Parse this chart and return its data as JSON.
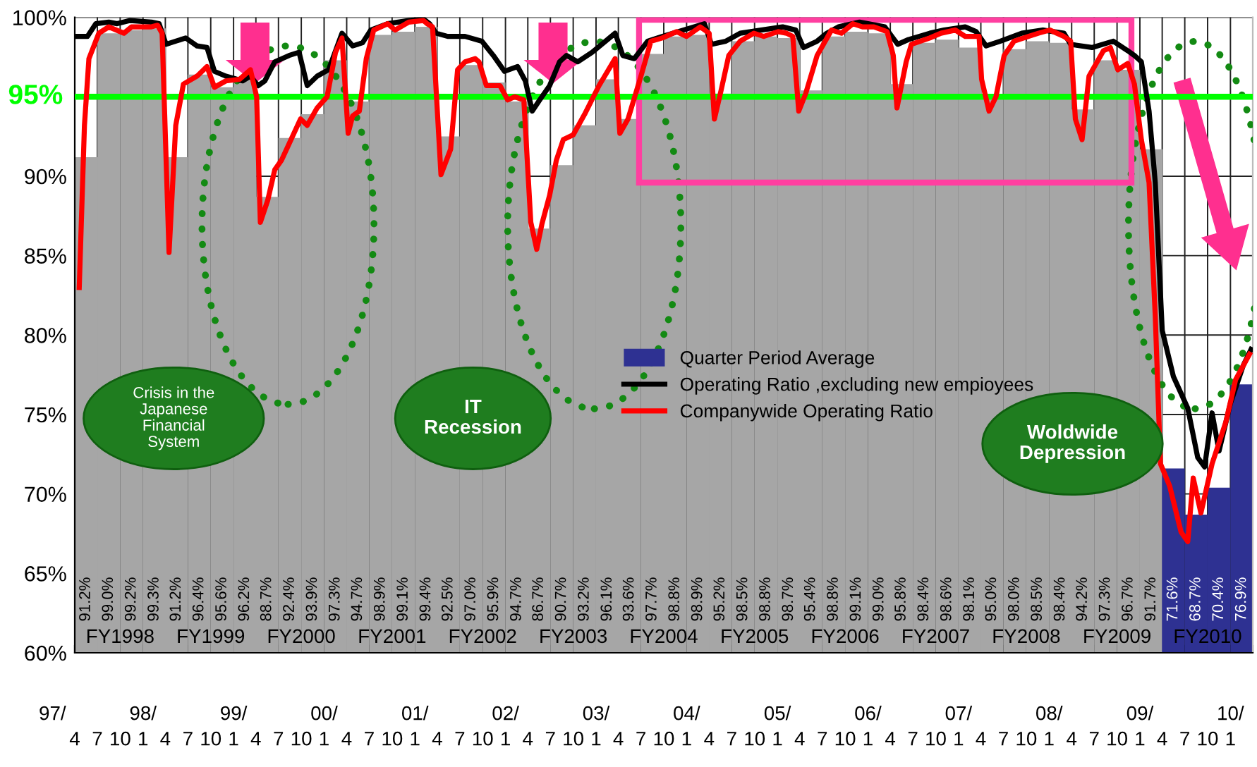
{
  "chart_data": {
    "type": "bar",
    "xlim": [
      "1997-04",
      "2010-04"
    ],
    "ylim": [
      60,
      100
    ],
    "grid": true,
    "legend": "center",
    "xticks": [
      {
        "value": "1997-04",
        "label": "4"
      },
      {
        "value": "1997-07",
        "label": "7"
      },
      {
        "value": "1997-10",
        "label": "10"
      },
      {
        "value": "1998-01",
        "label": "1"
      },
      {
        "value": "1998-04",
        "label": "4"
      },
      {
        "value": "1998-07",
        "label": "7"
      },
      {
        "value": "1998-10",
        "label": "10"
      },
      {
        "value": "1999-01",
        "label": "1"
      },
      {
        "value": "1999-04",
        "label": "4"
      },
      {
        "value": "1999-07",
        "label": "7"
      },
      {
        "value": "1999-10",
        "label": "10"
      },
      {
        "value": "2000-01",
        "label": "1"
      },
      {
        "value": "2000-04",
        "label": "4"
      },
      {
        "value": "2000-07",
        "label": "7"
      },
      {
        "value": "2000-10",
        "label": "10"
      },
      {
        "value": "2001-01",
        "label": "1"
      },
      {
        "value": "2001-04",
        "label": "4"
      },
      {
        "value": "2001-07",
        "label": "7"
      },
      {
        "value": "2001-10",
        "label": "10"
      },
      {
        "value": "2002-01",
        "label": "1"
      },
      {
        "value": "2002-04",
        "label": "4"
      },
      {
        "value": "2002-07",
        "label": "7"
      },
      {
        "value": "2002-10",
        "label": "10"
      },
      {
        "value": "2003-01",
        "label": "1"
      },
      {
        "value": "2003-04",
        "label": "4"
      },
      {
        "value": "2003-07",
        "label": "7"
      },
      {
        "value": "2003-10",
        "label": "10"
      },
      {
        "value": "2004-01",
        "label": "1"
      },
      {
        "value": "2004-04",
        "label": "4"
      },
      {
        "value": "2004-07",
        "label": "7"
      },
      {
        "value": "2004-10",
        "label": "10"
      },
      {
        "value": "2005-01",
        "label": "1"
      },
      {
        "value": "2005-04",
        "label": "4"
      },
      {
        "value": "2005-07",
        "label": "7"
      },
      {
        "value": "2005-10",
        "label": "10"
      },
      {
        "value": "2006-01",
        "label": "1"
      },
      {
        "value": "2006-04",
        "label": "4"
      },
      {
        "value": "2006-07",
        "label": "7"
      },
      {
        "value": "2006-10",
        "label": "10"
      },
      {
        "value": "2007-01",
        "label": "1"
      },
      {
        "value": "2007-04",
        "label": "4"
      },
      {
        "value": "2007-07",
        "label": "7"
      },
      {
        "value": "2007-10",
        "label": "10"
      },
      {
        "value": "2008-01",
        "label": "1"
      },
      {
        "value": "2008-04",
        "label": "4"
      },
      {
        "value": "2008-07",
        "label": "7"
      },
      {
        "value": "2008-10",
        "label": "10"
      },
      {
        "value": "2009-01",
        "label": "1"
      },
      {
        "value": "2009-04",
        "label": "4"
      },
      {
        "value": "2009-07",
        "label": "7"
      },
      {
        "value": "2009-10",
        "label": "10"
      },
      {
        "value": "2010-01",
        "label": "1"
      },
      {
        "value": "2010-04",
        "label": null
      }
    ],
    "x2lim": [
      "1997-01",
      "2010-04"
    ],
    "x2ticks": [
      {
        "value": "1997-01",
        "label": "97/"
      },
      {
        "value": "1998-01",
        "label": "98/"
      },
      {
        "value": "1999-01",
        "label": "99/"
      },
      {
        "value": "2000-01",
        "label": "00/"
      },
      {
        "value": "2001-01",
        "label": "01/"
      },
      {
        "value": "2002-01",
        "label": "02/"
      },
      {
        "value": "2003-01",
        "label": "03/"
      },
      {
        "value": "2004-01",
        "label": "04/"
      },
      {
        "value": "2005-01",
        "label": "05/"
      },
      {
        "value": "2006-01",
        "label": "06/"
      },
      {
        "value": "2007-01",
        "label": "07/"
      },
      {
        "value": "2008-01",
        "label": "08/"
      },
      {
        "value": "2009-01",
        "label": "09/"
      },
      {
        "value": "2010-01",
        "label": "10/"
      }
    ],
    "yticks": [
      {
        "value": 60,
        "label": "60%"
      },
      {
        "value": 65,
        "label": "65%"
      },
      {
        "value": 70,
        "label": "70%"
      },
      {
        "value": 75,
        "label": "75%"
      },
      {
        "value": 80,
        "label": "80%"
      },
      {
        "value": 85,
        "label": "85%"
      },
      {
        "value": 90,
        "label": "90%"
      },
      {
        "value": 100,
        "label": "100%"
      }
    ],
    "ref_lines": [
      {
        "axis": "y",
        "value": 95,
        "label": "95%",
        "color": "#00ff00"
      }
    ],
    "annotations": [
      "Crisis in the\nJapanese\nFinancial\nSystem",
      "IT\nRecession",
      "Woldwide\nDepression",
      {
        "text": "FY1998",
        "x": "1997-10"
      },
      {
        "text": "FY1999",
        "x": "1998-10"
      },
      {
        "text": "FY2000",
        "x": "1999-10"
      },
      {
        "text": "FY2001",
        "x": "2000-10"
      },
      {
        "text": "FY2002",
        "x": "2001-10"
      },
      {
        "text": "FY2003",
        "x": "2002-10"
      },
      {
        "text": "FY2004",
        "x": "2003-10"
      },
      {
        "text": "FY2005",
        "x": "2004-10"
      },
      {
        "text": "FY2006",
        "x": "2005-10"
      },
      {
        "text": "FY2007",
        "x": "2006-10"
      },
      {
        "text": "FY2008",
        "x": "2007-10"
      },
      {
        "text": "FY2009",
        "x": "2008-10"
      },
      {
        "text": "FY2010",
        "x": "2009-10"
      }
    ],
    "series": [
      {
        "name": "Quarter Period Average",
        "color": "#2e3192",
        "x": [
          "1997-05-16",
          "1997-08-16",
          "1997-11-16",
          "1998-02-16",
          "1998-05-16",
          "1998-08-16",
          "1998-11-16",
          "1999-02-16",
          "1999-05-16",
          "1999-08-16",
          "1999-11-16",
          "2000-02-16",
          "2000-05-16",
          "2000-08-16",
          "2000-11-16",
          "2001-02-16",
          "2001-05-16",
          "2001-08-16",
          "2001-11-16",
          "2002-02-16",
          "2002-05-16",
          "2002-08-16",
          "2002-11-16",
          "2003-02-16",
          "2003-05-16",
          "2003-08-16",
          "2003-11-16",
          "2004-02-16",
          "2004-05-16",
          "2004-08-16",
          "2004-11-16",
          "2005-02-16",
          "2005-05-16",
          "2005-08-16",
          "2005-11-16",
          "2006-02-16",
          "2006-05-16",
          "2006-08-16",
          "2006-11-16",
          "2007-02-16",
          "2007-05-16",
          "2007-08-16",
          "2007-11-16",
          "2008-02-16",
          "2008-05-16",
          "2008-08-16",
          "2008-11-16",
          "2009-02-16",
          "2009-05-16",
          "2009-08-16",
          "2009-11-16",
          "2010-02-16"
        ],
        "values": [
          91.2,
          99.0,
          99.2,
          99.3,
          91.2,
          96.4,
          95.6,
          96.2,
          88.7,
          92.4,
          93.9,
          97.3,
          94.7,
          98.9,
          99.1,
          99.4,
          92.5,
          97.0,
          95.9,
          94.7,
          86.7,
          90.7,
          93.2,
          96.1,
          93.6,
          97.7,
          98.8,
          98.9,
          95.2,
          98.5,
          98.8,
          98.7,
          95.4,
          98.8,
          99.1,
          99.0,
          95.8,
          98.4,
          98.6,
          98.1,
          95.0,
          98.0,
          98.5,
          98.4,
          94.2,
          97.3,
          96.7,
          91.7,
          71.6,
          68.7,
          70.4,
          76.9
        ],
        "value_labels": [
          "91.2%",
          "99.0%",
          "99.2%",
          "99.3%",
          "91.2%",
          "96.4%",
          "95.6%",
          "96.2%",
          "88.7%",
          "92.4%",
          "93.9%",
          "97.3%",
          "94.7%",
          "98.9%",
          "99.1%",
          "99.4%",
          "92.5%",
          "97.0%",
          "95.9%",
          "94.7%",
          "86.7%",
          "90.7%",
          "93.2%",
          "96.1%",
          "93.6%",
          "97.7%",
          "98.8%",
          "98.9%",
          "95.2%",
          "98.5%",
          "98.8%",
          "98.7%",
          "95.4%",
          "98.8%",
          "99.1%",
          "99.0%",
          "95.8%",
          "98.4%",
          "98.6%",
          "98.1%",
          "95.0%",
          "98.0%",
          "98.5%",
          "98.4%",
          "94.2%",
          "97.3%",
          "96.7%",
          "91.7%",
          "71.6%",
          "68.7%",
          "70.4%",
          "76.9%"
        ],
        "colors": [
          "#a6a6a6",
          "#a6a6a6",
          "#a6a6a6",
          "#a6a6a6",
          "#a6a6a6",
          "#a6a6a6",
          "#a6a6a6",
          "#a6a6a6",
          "#a6a6a6",
          "#a6a6a6",
          "#a6a6a6",
          "#a6a6a6",
          "#a6a6a6",
          "#a6a6a6",
          "#a6a6a6",
          "#a6a6a6",
          "#a6a6a6",
          "#a6a6a6",
          "#a6a6a6",
          "#a6a6a6",
          "#a6a6a6",
          "#a6a6a6",
          "#a6a6a6",
          "#a6a6a6",
          "#a6a6a6",
          "#a6a6a6",
          "#a6a6a6",
          "#a6a6a6",
          "#a6a6a6",
          "#a6a6a6",
          "#a6a6a6",
          "#a6a6a6",
          "#a6a6a6",
          "#a6a6a6",
          "#a6a6a6",
          "#a6a6a6",
          "#a6a6a6",
          "#a6a6a6",
          "#a6a6a6",
          "#a6a6a6",
          "#a6a6a6",
          "#a6a6a6",
          "#a6a6a6",
          "#a6a6a6",
          "#a6a6a6",
          "#a6a6a6",
          "#a6a6a6",
          "#a6a6a6",
          "#2e3192",
          "#2e3192",
          "#2e3192",
          "#2e3192"
        ]
      },
      {
        "type": "line",
        "name": "Operating Ratio ,excluding new empioyees",
        "color": "#000000",
        "x": [
          "1997-04-13",
          "1997-05-22",
          "1997-06-25",
          "1997-08-16",
          "1997-09-19",
          "1997-11-10",
          "1998-02-04",
          "1998-03-07",
          "1998-04-04",
          "1998-05-13",
          "1998-06-22",
          "1998-08-07",
          "1998-09-16",
          "1998-10-16",
          "1998-12-01",
          "1999-02-07",
          "1999-03-10",
          "1999-04-10",
          "1999-05-07",
          "1999-06-16",
          "1999-08-13",
          "1999-09-22",
          "1999-10-25",
          "1999-12-04",
          "2000-01-19",
          "2000-03-13",
          "2000-04-25",
          "2000-06-04",
          "2000-07-07",
          "2000-09-13",
          "2000-12-07",
          "2001-02-04",
          "2001-03-01",
          "2001-03-28",
          "2001-05-13",
          "2001-07-22",
          "2001-09-28",
          "2001-11-13",
          "2001-12-28",
          "2002-02-19",
          "2002-03-22",
          "2002-04-19",
          "2002-05-19",
          "2002-06-28",
          "2002-08-07",
          "2002-09-04",
          "2002-10-19",
          "2002-12-16",
          "2003-03-19",
          "2003-04-19",
          "2003-06-04",
          "2003-07-28",
          "2003-09-25",
          "2003-12-19",
          "2004-03-13",
          "2004-04-10",
          "2004-06-07",
          "2004-08-04",
          "2004-10-28",
          "2005-01-22",
          "2005-03-16",
          "2005-04-16",
          "2005-06-10",
          "2005-07-19",
          "2005-09-04",
          "2005-11-28",
          "2006-03-10",
          "2006-05-01",
          "2006-06-13",
          "2006-09-07",
          "2006-11-04",
          "2007-01-28",
          "2007-03-13",
          "2007-04-22",
          "2007-06-19",
          "2007-09-13",
          "2007-12-07",
          "2008-03-01",
          "2008-03-28",
          "2008-06-22",
          "2008-09-16",
          "2008-11-13",
          "2008-12-10",
          "2009-01-07",
          "2009-02-07",
          "2009-03-04",
          "2009-04-01",
          "2009-05-16",
          "2009-07-13",
          "2009-08-22",
          "2009-09-19",
          "2009-10-19",
          "2009-11-16",
          "2010-01-01",
          "2010-02-22",
          "2010-03-25"
        ],
        "values": [
          98.8,
          98.8,
          99.6,
          99.7,
          99.6,
          99.8,
          99.7,
          99.6,
          98.3,
          98.5,
          98.7,
          98.2,
          98.1,
          96.6,
          96.3,
          96.0,
          96.3,
          95.7,
          96.0,
          97.2,
          97.6,
          97.8,
          95.7,
          96.3,
          96.7,
          99.0,
          98.2,
          98.4,
          99.2,
          99.6,
          99.8,
          99.9,
          99.6,
          99.0,
          98.8,
          98.8,
          98.5,
          97.6,
          96.6,
          96.9,
          96.0,
          94.1,
          94.8,
          95.7,
          97.2,
          97.6,
          97.2,
          97.8,
          99.0,
          97.6,
          97.4,
          98.5,
          98.8,
          99.2,
          99.6,
          98.3,
          98.5,
          99.0,
          99.2,
          99.4,
          99.2,
          98.1,
          98.5,
          99.0,
          99.4,
          99.7,
          99.4,
          98.3,
          98.6,
          99.0,
          99.2,
          99.4,
          99.1,
          98.2,
          98.5,
          99.0,
          99.2,
          99.0,
          98.3,
          98.1,
          98.5,
          97.9,
          97.6,
          97.2,
          94.1,
          89.6,
          80.3,
          77.4,
          75.4,
          72.3,
          71.7,
          75.1,
          72.7,
          75.7,
          78.1,
          79.1
        ]
      },
      {
        "type": "line",
        "name": "Companywide Operating Ratio",
        "color": "#ff0000",
        "x": [
          "1997-04-19",
          "1997-05-10",
          "1997-05-28",
          "1997-07-07",
          "1997-08-16",
          "1997-10-16",
          "1997-11-16",
          "1998-02-04",
          "1998-03-01",
          "1998-03-19",
          "1998-04-16",
          "1998-05-13",
          "1998-06-13",
          "1998-08-07",
          "1998-09-16",
          "1998-10-16",
          "1998-12-01",
          "1999-01-25",
          "1999-03-10",
          "1999-04-04",
          "1999-04-19",
          "1999-05-19",
          "1999-06-16",
          "1999-07-13",
          "1999-09-28",
          "1999-10-25",
          "1999-12-04",
          "2000-01-13",
          "2000-02-16",
          "2000-03-13",
          "2000-04-07",
          "2000-04-25",
          "2000-05-22",
          "2000-06-19",
          "2000-07-19",
          "2000-09-13",
          "2000-10-13",
          "2000-12-07",
          "2001-02-04",
          "2001-02-19",
          "2001-03-13",
          "2001-04-16",
          "2001-05-25",
          "2001-06-22",
          "2001-07-22",
          "2001-09-01",
          "2001-09-16",
          "2001-10-16",
          "2001-12-10",
          "2002-01-10",
          "2002-02-07",
          "2002-03-16",
          "2002-04-13",
          "2002-05-07",
          "2002-05-28",
          "2002-06-28",
          "2002-07-25",
          "2002-08-22",
          "2002-10-01",
          "2002-11-16",
          "2003-01-13",
          "2003-03-19",
          "2003-04-07",
          "2003-05-10",
          "2003-07-01",
          "2003-08-10",
          "2003-09-25",
          "2003-11-22",
          "2004-01-01",
          "2004-02-25",
          "2004-04-01",
          "2004-04-22",
          "2004-05-19",
          "2004-06-19",
          "2004-08-04",
          "2004-09-28",
          "2004-11-07",
          "2005-01-04",
          "2005-02-07",
          "2005-03-04",
          "2005-03-28",
          "2005-04-25",
          "2005-06-10",
          "2005-08-07",
          "2005-09-16",
          "2005-11-01",
          "2005-12-10",
          "2006-01-25",
          "2006-03-19",
          "2006-04-13",
          "2006-04-28",
          "2006-06-04",
          "2006-06-25",
          "2006-09-07",
          "2006-10-22",
          "2006-12-19",
          "2007-01-28",
          "2007-03-25",
          "2007-04-04",
          "2007-05-04",
          "2007-06-01",
          "2007-07-04",
          "2007-08-13",
          "2007-10-10",
          "2007-11-19",
          "2008-01-04",
          "2008-03-01",
          "2008-03-28",
          "2008-04-16",
          "2008-05-13",
          "2008-06-10",
          "2008-08-07",
          "2008-09-04",
          "2008-10-04",
          "2008-11-13",
          "2008-12-10",
          "2009-01-07",
          "2009-02-07",
          "2009-03-04",
          "2009-03-25",
          "2009-05-01",
          "2009-06-16",
          "2009-07-13",
          "2009-08-04",
          "2009-09-04",
          "2009-10-19",
          "2009-12-13",
          "2010-01-22",
          "2010-03-19"
        ],
        "values": [
          83.0,
          93.2,
          97.4,
          99.0,
          99.4,
          99.0,
          99.4,
          99.4,
          99.5,
          99.0,
          85.2,
          93.2,
          95.8,
          96.3,
          96.9,
          95.6,
          96.0,
          96.1,
          96.7,
          95.0,
          87.1,
          88.5,
          90.4,
          91.0,
          93.6,
          93.2,
          94.3,
          95.0,
          97.8,
          98.7,
          92.7,
          93.8,
          94.1,
          97.4,
          99.2,
          99.6,
          99.2,
          99.7,
          99.8,
          99.6,
          99.4,
          90.1,
          91.7,
          96.7,
          97.2,
          97.4,
          97.2,
          95.7,
          95.7,
          94.8,
          95.0,
          94.8,
          87.1,
          85.4,
          87.0,
          88.8,
          91.0,
          92.3,
          92.6,
          93.9,
          95.7,
          97.4,
          92.7,
          93.6,
          96.3,
          98.5,
          98.7,
          99.1,
          98.8,
          99.4,
          99.0,
          93.6,
          95.4,
          97.6,
          98.5,
          99.0,
          98.8,
          99.1,
          99.0,
          98.8,
          94.1,
          95.2,
          97.6,
          99.2,
          99.0,
          99.6,
          99.4,
          99.4,
          99.1,
          97.6,
          94.3,
          97.2,
          98.3,
          98.7,
          99.0,
          99.2,
          98.8,
          98.8,
          96.1,
          94.1,
          95.0,
          97.6,
          98.5,
          98.8,
          99.0,
          99.2,
          98.8,
          98.5,
          93.6,
          92.3,
          96.3,
          97.9,
          98.1,
          96.7,
          97.1,
          95.8,
          92.3,
          89.6,
          81.2,
          71.9,
          70.5,
          67.6,
          67.0,
          71.0,
          68.8,
          71.9,
          74.5,
          77.2,
          78.8
        ]
      }
    ]
  }
}
